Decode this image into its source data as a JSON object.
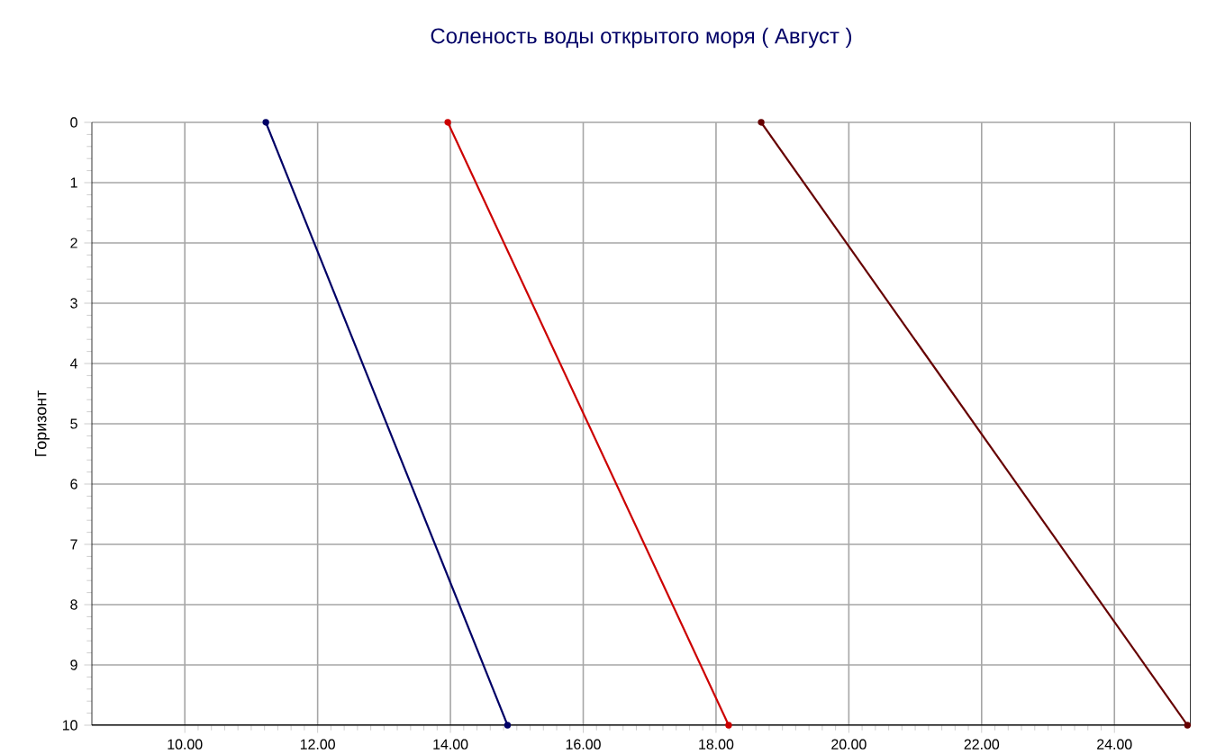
{
  "chart_data": {
    "type": "line",
    "title": "Соленость воды открытого моря    ( Август )",
    "ylabel": "Горизонт",
    "xlim": [
      8.6,
      25.15
    ],
    "xticks": [
      {
        "value": 10,
        "label": "10.00"
      },
      {
        "value": 12,
        "label": "12.00"
      },
      {
        "value": 14,
        "label": "14.00"
      },
      {
        "value": 16,
        "label": "16.00"
      },
      {
        "value": 18,
        "label": "18.00"
      },
      {
        "value": 20,
        "label": "20.00"
      },
      {
        "value": 22,
        "label": "22.00"
      },
      {
        "value": 24,
        "label": "24.00"
      }
    ],
    "ylim": [
      10,
      0
    ],
    "yticks": [
      0,
      1,
      2,
      3,
      4,
      5,
      6,
      7,
      8,
      9,
      10
    ],
    "grid": true,
    "marker": "circle",
    "series": [
      {
        "color": "#000066",
        "x": [
          11.22,
          14.86
        ],
        "values": [
          0,
          10
        ]
      },
      {
        "color": "#cc0000",
        "x": [
          13.96,
          18.19
        ],
        "values": [
          0,
          10
        ]
      },
      {
        "color": "#660000",
        "x": [
          18.68,
          25.1
        ],
        "values": [
          0,
          10
        ]
      }
    ]
  }
}
